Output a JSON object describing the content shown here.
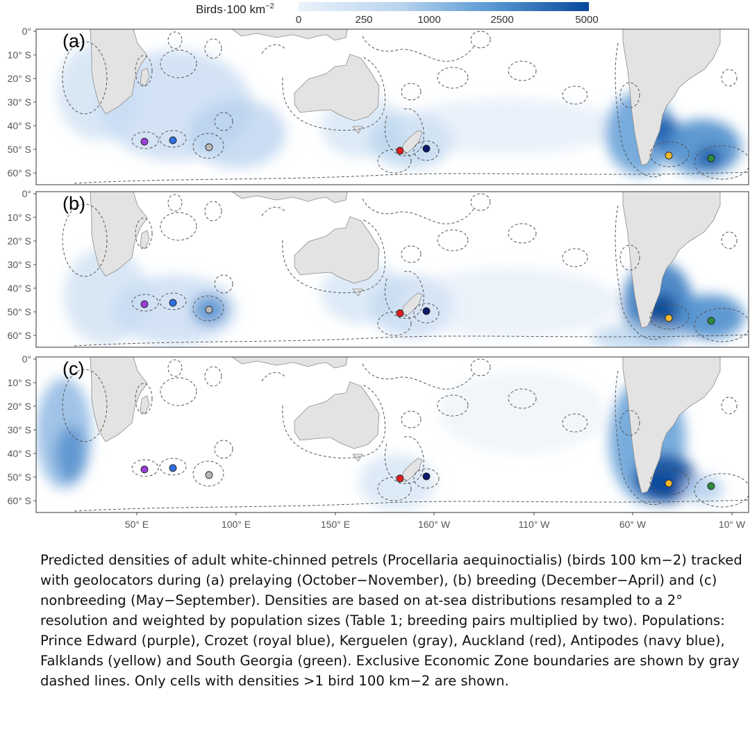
{
  "legend": {
    "title": "Birds·100 km",
    "title_superscript": "−2",
    "ticks": [
      "0",
      "250",
      "1000",
      "2500",
      "5000"
    ],
    "color_low": "#eaf2fb",
    "color_high": "#08489c"
  },
  "y_axis_labels": [
    "0°",
    "10° S",
    "20° S",
    "30° S",
    "40° S",
    "50° S",
    "60° S"
  ],
  "x_axis_labels": [
    "50° E",
    "100° E",
    "150° E",
    "160° W",
    "110° W",
    "60° W",
    "10° W"
  ],
  "panels": [
    {
      "label": "(a)",
      "period": "prelaying"
    },
    {
      "label": "(b)",
      "period": "breeding"
    },
    {
      "label": "(c)",
      "period": "nonbreeding"
    }
  ],
  "colonies": [
    {
      "name": "Prince Edward",
      "color": "#9b3fd6"
    },
    {
      "name": "Crozet",
      "color": "#2f6fe0"
    },
    {
      "name": "Kerguelen",
      "color": "#b8b8b8"
    },
    {
      "name": "Auckland",
      "color": "#e02020"
    },
    {
      "name": "Antipodes",
      "color": "#0a1a6e"
    },
    {
      "name": "Falklands",
      "color": "#f5b82e"
    },
    {
      "name": "South Georgia",
      "color": "#2e8b3e"
    }
  ],
  "map_colors": {
    "land": "#e3e3e3",
    "land_stroke": "#8a8a8a",
    "eez": "#555555"
  },
  "caption": "Predicted densities of adult white-chinned petrels (Procellaria aequinoctialis) (birds 100 km−2) tracked with geolocators during (a) prelaying (October−November), (b) breeding (December−April) and (c) nonbreeding (May−September). Densities are based on at-sea distributions resampled to a 2° resolution and weighted by population sizes (Table 1; breeding pairs multiplied by two). Populations: Prince Edward (purple), Crozet (royal blue), Kerguelen (gray), Auckland (red), Antipodes (navy blue), Falklands (yellow) and South Georgia (green). Exclusive Economic Zone boundaries are shown by gray dashed lines. Only cells with densities >1 bird 100 km−2 are shown."
}
